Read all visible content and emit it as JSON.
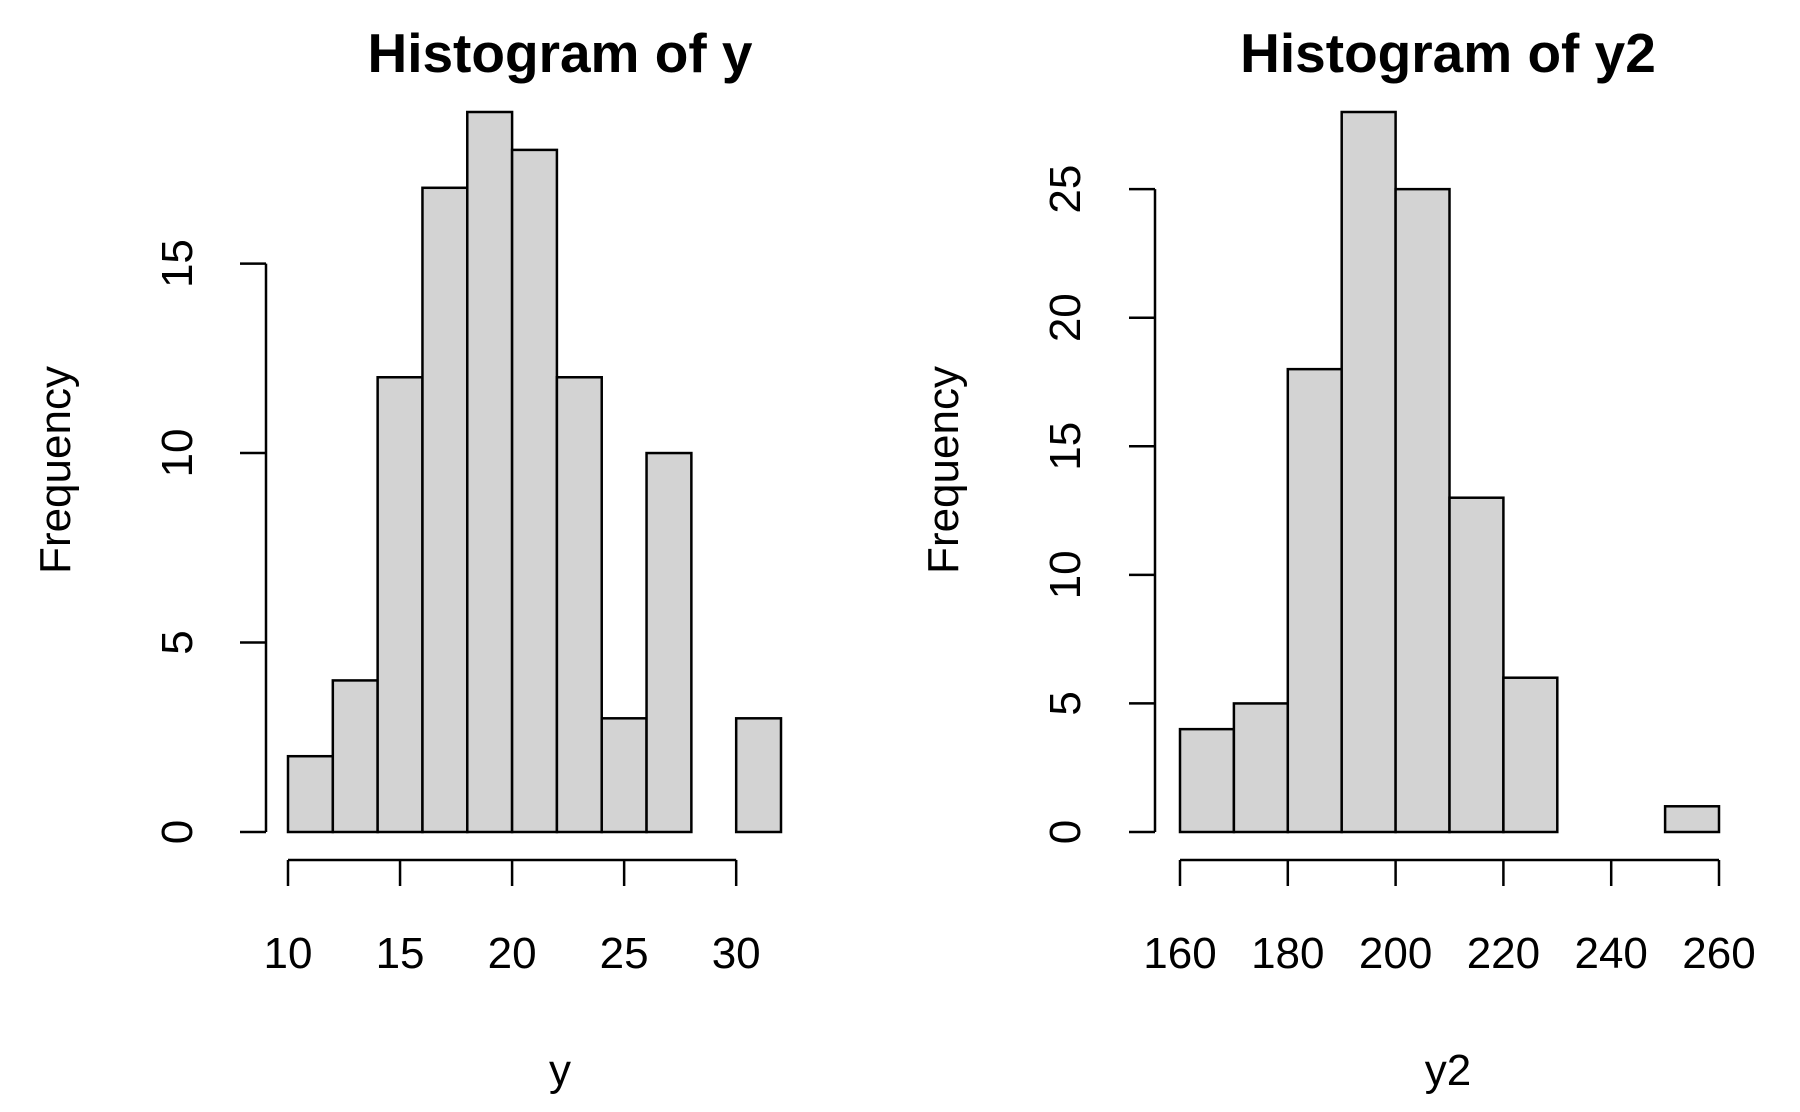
{
  "chart_data": [
    {
      "type": "bar",
      "title": "Histogram of y",
      "xlabel": "y",
      "ylabel": "Frequency",
      "bins": [
        [
          10,
          12
        ],
        [
          12,
          14
        ],
        [
          14,
          16
        ],
        [
          16,
          18
        ],
        [
          18,
          20
        ],
        [
          20,
          22
        ],
        [
          22,
          24
        ],
        [
          24,
          26
        ],
        [
          26,
          28
        ],
        [
          28,
          30
        ],
        [
          30,
          32
        ]
      ],
      "values": [
        2,
        4,
        12,
        17,
        19,
        18,
        12,
        3,
        10,
        0,
        3
      ],
      "xlim": [
        10,
        32
      ],
      "ylim": [
        0,
        19
      ],
      "xticks": [
        10,
        15,
        20,
        25,
        30
      ],
      "yticks": [
        0,
        5,
        10,
        15
      ],
      "grid": false,
      "bar_color": "#d3d3d3"
    },
    {
      "type": "bar",
      "title": "Histogram of y2",
      "xlabel": "y2",
      "ylabel": "Frequency",
      "bins": [
        [
          160,
          170
        ],
        [
          170,
          180
        ],
        [
          180,
          190
        ],
        [
          190,
          200
        ],
        [
          200,
          210
        ],
        [
          210,
          220
        ],
        [
          220,
          230
        ],
        [
          230,
          240
        ],
        [
          240,
          250
        ],
        [
          250,
          260
        ]
      ],
      "values": [
        4,
        5,
        18,
        28,
        25,
        13,
        6,
        0,
        0,
        1
      ],
      "xlim": [
        160,
        260
      ],
      "ylim": [
        0,
        28
      ],
      "xticks": [
        160,
        180,
        200,
        220,
        240,
        260
      ],
      "yticks": [
        0,
        5,
        10,
        15,
        20,
        25
      ],
      "grid": false,
      "bar_color": "#d3d3d3"
    }
  ]
}
